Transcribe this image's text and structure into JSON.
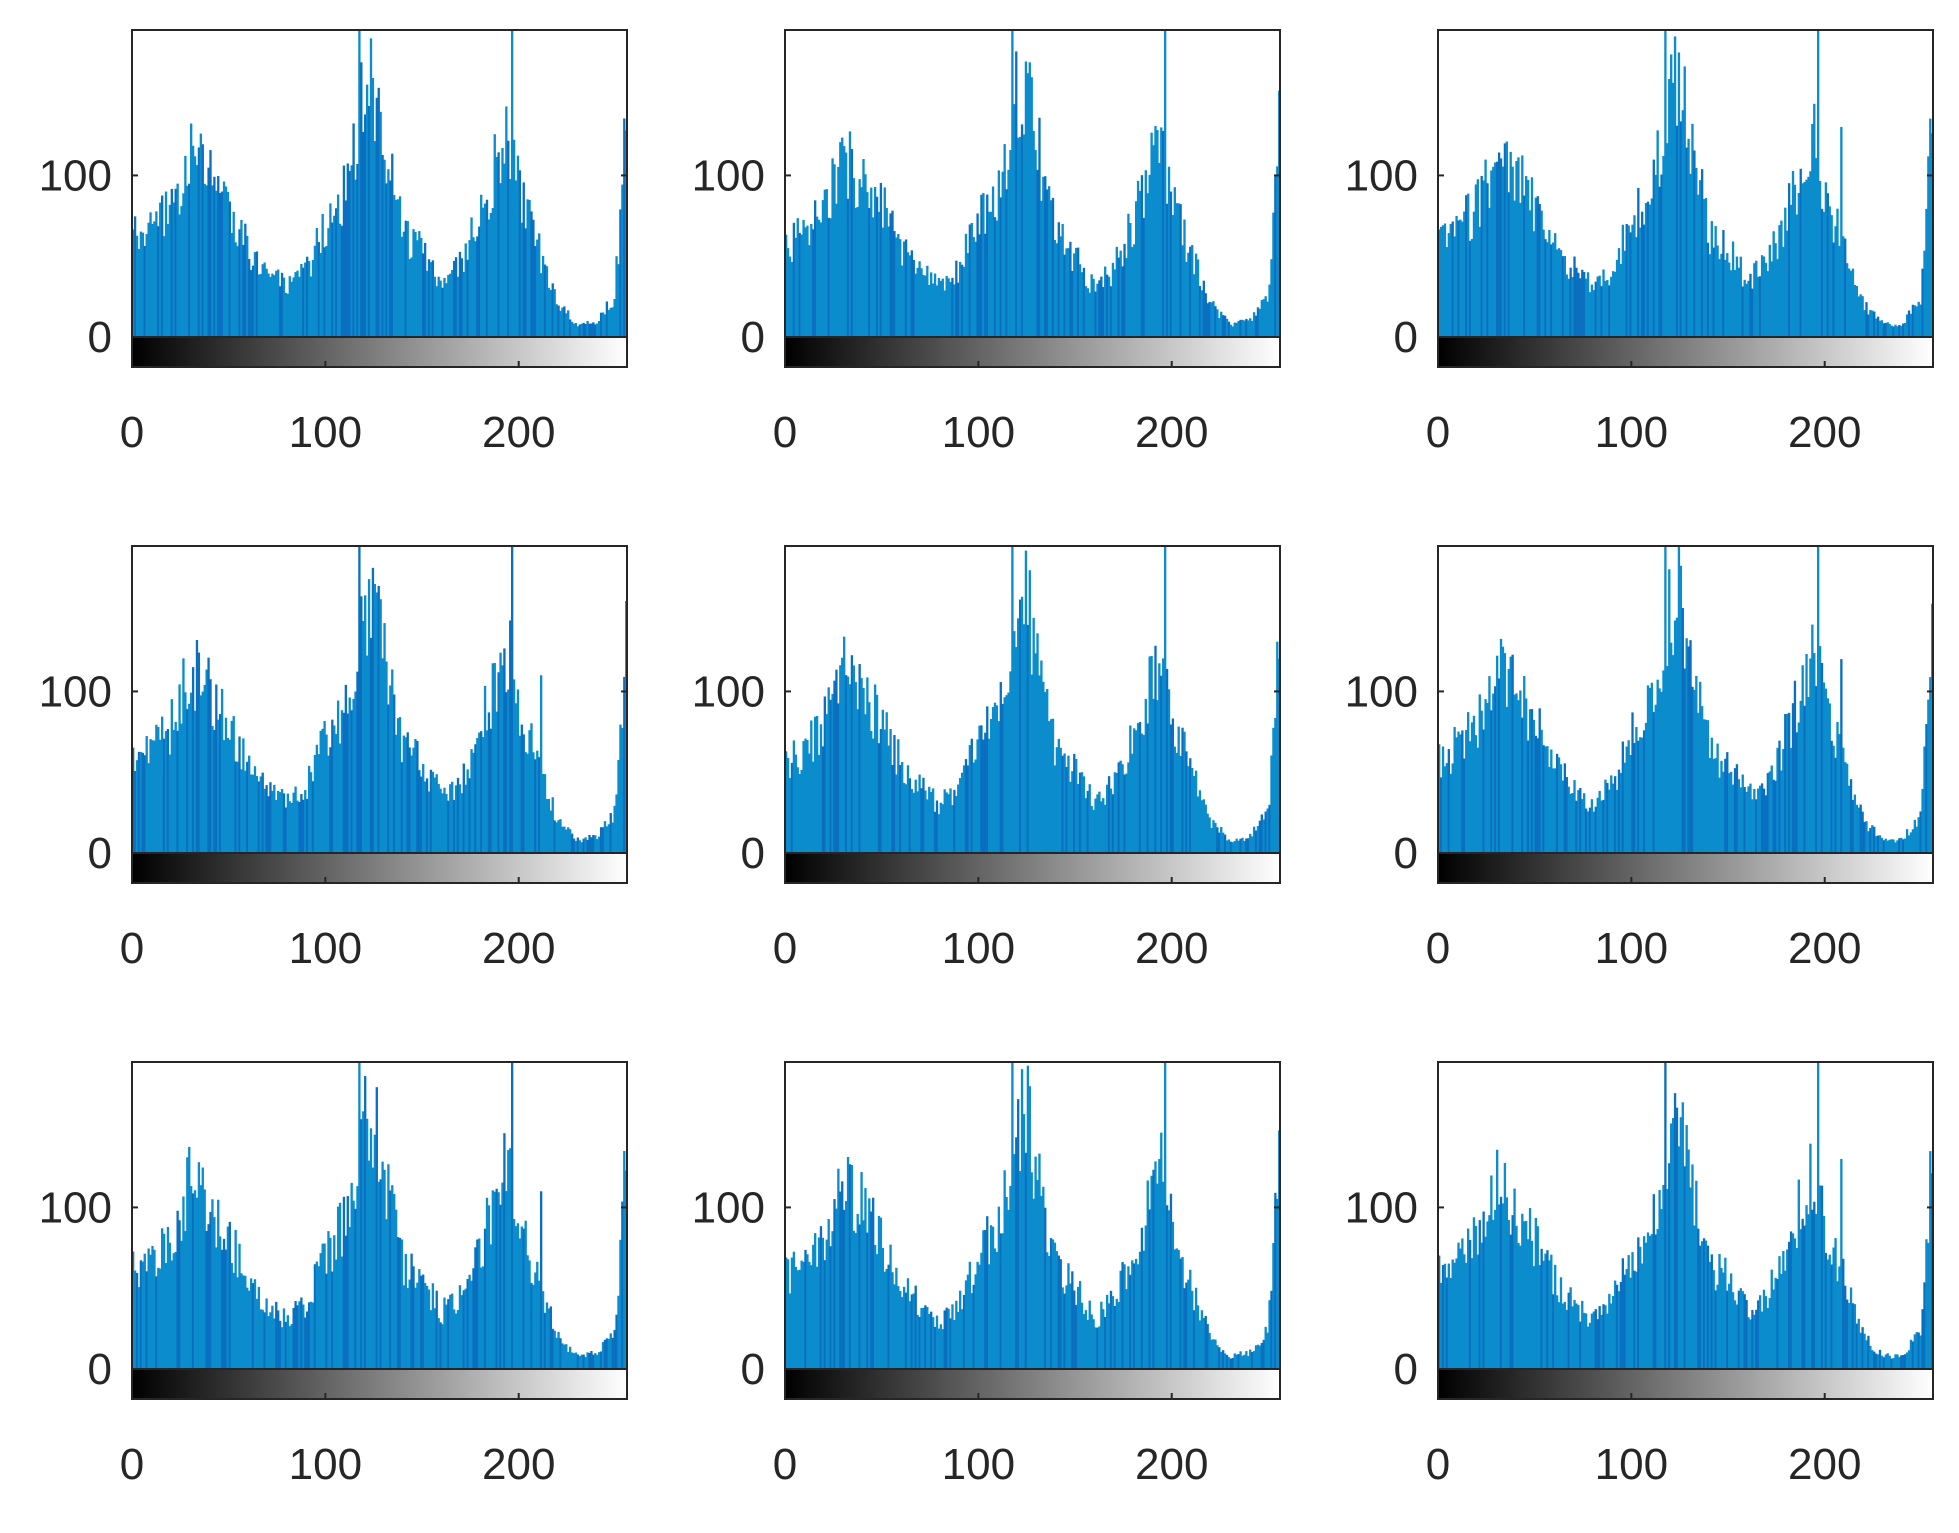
{
  "colors": {
    "bar": "#0a8ccd",
    "bar_dark": "#0b6fc0",
    "axis": "#262626",
    "background": "#ffffff"
  },
  "chart_data": [
    {
      "type": "bar",
      "panel": 1,
      "xlim": [
        0,
        256
      ],
      "ylim": [
        0,
        190
      ],
      "xticks": [
        "0",
        "100",
        "200"
      ],
      "xtick_values": [
        0,
        100,
        200
      ],
      "yticks": [
        "0",
        "100"
      ],
      "ytick_values": [
        0,
        100
      ],
      "colorbar": "grayscale",
      "bins": 256,
      "shape_keypoints": [
        [
          0,
          62
        ],
        [
          10,
          65
        ],
        [
          20,
          80
        ],
        [
          30,
          112
        ],
        [
          40,
          100
        ],
        [
          50,
          80
        ],
        [
          60,
          55
        ],
        [
          70,
          42
        ],
        [
          80,
          30
        ],
        [
          90,
          40
        ],
        [
          100,
          70
        ],
        [
          110,
          90
        ],
        [
          117,
          120
        ],
        [
          120,
          150
        ],
        [
          125,
          155
        ],
        [
          130,
          120
        ],
        [
          140,
          65
        ],
        [
          150,
          55
        ],
        [
          160,
          35
        ],
        [
          170,
          45
        ],
        [
          180,
          75
        ],
        [
          190,
          115
        ],
        [
          195,
          125
        ],
        [
          200,
          90
        ],
        [
          210,
          55
        ],
        [
          220,
          22
        ],
        [
          230,
          8
        ],
        [
          240,
          10
        ],
        [
          250,
          25
        ],
        [
          256,
          150
        ]
      ],
      "spikes": [
        [
          117,
          190
        ],
        [
          118,
          170
        ],
        [
          196,
          190
        ],
        [
          250,
          50
        ]
      ]
    },
    {
      "type": "bar",
      "panel": 2,
      "xlim": [
        0,
        256
      ],
      "ylim": [
        0,
        190
      ],
      "xticks": [
        "0",
        "100",
        "200"
      ],
      "xtick_values": [
        0,
        100,
        200
      ],
      "yticks": [
        "0",
        "100"
      ],
      "ytick_values": [
        0,
        100
      ],
      "colorbar": "grayscale",
      "bins": 256,
      "shape_keypoints": [
        [
          0,
          58
        ],
        [
          10,
          62
        ],
        [
          20,
          78
        ],
        [
          30,
          110
        ],
        [
          40,
          98
        ],
        [
          50,
          80
        ],
        [
          60,
          55
        ],
        [
          70,
          40
        ],
        [
          80,
          30
        ],
        [
          90,
          42
        ],
        [
          100,
          72
        ],
        [
          110,
          88
        ],
        [
          117,
          130
        ],
        [
          120,
          150
        ],
        [
          125,
          160
        ],
        [
          130,
          120
        ],
        [
          140,
          65
        ],
        [
          150,
          50
        ],
        [
          160,
          30
        ],
        [
          170,
          42
        ],
        [
          180,
          70
        ],
        [
          190,
          112
        ],
        [
          195,
          122
        ],
        [
          200,
          85
        ],
        [
          210,
          50
        ],
        [
          220,
          20
        ],
        [
          230,
          8
        ],
        [
          240,
          10
        ],
        [
          250,
          25
        ],
        [
          256,
          145
        ]
      ],
      "spikes": [
        [
          117,
          190
        ],
        [
          126,
          170
        ],
        [
          196,
          190
        ],
        [
          256,
          170
        ]
      ]
    },
    {
      "type": "bar",
      "panel": 3,
      "xlim": [
        0,
        256
      ],
      "ylim": [
        0,
        190
      ],
      "xticks": [
        "0",
        "100",
        "200"
      ],
      "xtick_values": [
        0,
        100,
        200
      ],
      "yticks": [
        "0",
        "100"
      ],
      "ytick_values": [
        0,
        100
      ],
      "colorbar": "grayscale",
      "bins": 256,
      "shape_keypoints": [
        [
          0,
          60
        ],
        [
          10,
          65
        ],
        [
          20,
          82
        ],
        [
          30,
          112
        ],
        [
          40,
          100
        ],
        [
          50,
          80
        ],
        [
          60,
          55
        ],
        [
          70,
          42
        ],
        [
          80,
          30
        ],
        [
          90,
          42
        ],
        [
          100,
          72
        ],
        [
          110,
          92
        ],
        [
          117,
          125
        ],
        [
          120,
          150
        ],
        [
          125,
          160
        ],
        [
          130,
          125
        ],
        [
          140,
          65
        ],
        [
          150,
          55
        ],
        [
          160,
          35
        ],
        [
          170,
          45
        ],
        [
          180,
          72
        ],
        [
          190,
          115
        ],
        [
          195,
          125
        ],
        [
          200,
          90
        ],
        [
          210,
          55
        ],
        [
          220,
          20
        ],
        [
          230,
          8
        ],
        [
          240,
          8
        ],
        [
          250,
          25
        ],
        [
          256,
          150
        ]
      ],
      "spikes": [
        [
          117,
          190
        ],
        [
          196,
          190
        ],
        [
          208,
          130
        ],
        [
          256,
          170
        ]
      ]
    },
    {
      "type": "bar",
      "panel": 4,
      "xlim": [
        0,
        256
      ],
      "ylim": [
        0,
        190
      ],
      "xticks": [
        "0",
        "100",
        "200"
      ],
      "xtick_values": [
        0,
        100,
        200
      ],
      "yticks": [
        "0",
        "100"
      ],
      "ytick_values": [
        0,
        100
      ],
      "colorbar": "grayscale",
      "bins": 256,
      "shape_keypoints": [
        [
          0,
          58
        ],
        [
          10,
          62
        ],
        [
          20,
          78
        ],
        [
          30,
          115
        ],
        [
          40,
          102
        ],
        [
          50,
          80
        ],
        [
          60,
          55
        ],
        [
          70,
          40
        ],
        [
          80,
          30
        ],
        [
          90,
          40
        ],
        [
          100,
          70
        ],
        [
          110,
          90
        ],
        [
          117,
          125
        ],
        [
          120,
          150
        ],
        [
          125,
          155
        ],
        [
          130,
          120
        ],
        [
          140,
          65
        ],
        [
          150,
          55
        ],
        [
          160,
          35
        ],
        [
          170,
          45
        ],
        [
          180,
          75
        ],
        [
          190,
          115
        ],
        [
          195,
          125
        ],
        [
          200,
          90
        ],
        [
          210,
          55
        ],
        [
          220,
          20
        ],
        [
          230,
          8
        ],
        [
          240,
          10
        ],
        [
          250,
          25
        ],
        [
          256,
          150
        ]
      ],
      "spikes": [
        [
          117,
          190
        ],
        [
          196,
          190
        ],
        [
          211,
          110
        ],
        [
          256,
          170
        ]
      ]
    },
    {
      "type": "bar",
      "panel": 5,
      "xlim": [
        0,
        256
      ],
      "ylim": [
        0,
        190
      ],
      "xticks": [
        "0",
        "100",
        "200"
      ],
      "xtick_values": [
        0,
        100,
        200
      ],
      "yticks": [
        "0",
        "100"
      ],
      "ytick_values": [
        0,
        100
      ],
      "colorbar": "grayscale",
      "bins": 256,
      "shape_keypoints": [
        [
          0,
          55
        ],
        [
          10,
          62
        ],
        [
          20,
          78
        ],
        [
          30,
          112
        ],
        [
          40,
          100
        ],
        [
          50,
          80
        ],
        [
          60,
          55
        ],
        [
          70,
          40
        ],
        [
          80,
          30
        ],
        [
          90,
          40
        ],
        [
          100,
          70
        ],
        [
          110,
          88
        ],
        [
          117,
          125
        ],
        [
          120,
          150
        ],
        [
          125,
          160
        ],
        [
          130,
          120
        ],
        [
          140,
          65
        ],
        [
          150,
          50
        ],
        [
          160,
          30
        ],
        [
          170,
          42
        ],
        [
          180,
          70
        ],
        [
          190,
          110
        ],
        [
          195,
          122
        ],
        [
          200,
          85
        ],
        [
          210,
          50
        ],
        [
          220,
          20
        ],
        [
          230,
          8
        ],
        [
          240,
          10
        ],
        [
          250,
          25
        ],
        [
          256,
          145
        ]
      ],
      "spikes": [
        [
          117,
          190
        ],
        [
          126,
          175
        ],
        [
          196,
          190
        ],
        [
          256,
          170
        ]
      ]
    },
    {
      "type": "bar",
      "panel": 6,
      "xlim": [
        0,
        256
      ],
      "ylim": [
        0,
        190
      ],
      "xticks": [
        "0",
        "100",
        "200"
      ],
      "xtick_values": [
        0,
        100,
        200
      ],
      "yticks": [
        "0",
        "100"
      ],
      "ytick_values": [
        0,
        100
      ],
      "colorbar": "grayscale",
      "bins": 256,
      "shape_keypoints": [
        [
          0,
          58
        ],
        [
          10,
          65
        ],
        [
          20,
          80
        ],
        [
          30,
          112
        ],
        [
          40,
          100
        ],
        [
          50,
          80
        ],
        [
          60,
          55
        ],
        [
          70,
          40
        ],
        [
          80,
          30
        ],
        [
          90,
          42
        ],
        [
          100,
          72
        ],
        [
          110,
          92
        ],
        [
          117,
          125
        ],
        [
          120,
          150
        ],
        [
          125,
          158
        ],
        [
          130,
          122
        ],
        [
          140,
          65
        ],
        [
          150,
          55
        ],
        [
          160,
          35
        ],
        [
          170,
          45
        ],
        [
          180,
          72
        ],
        [
          190,
          112
        ],
        [
          195,
          125
        ],
        [
          200,
          88
        ],
        [
          210,
          55
        ],
        [
          220,
          20
        ],
        [
          230,
          8
        ],
        [
          240,
          8
        ],
        [
          250,
          25
        ],
        [
          256,
          150
        ]
      ],
      "spikes": [
        [
          117,
          190
        ],
        [
          196,
          190
        ],
        [
          208,
          120
        ],
        [
          256,
          170
        ]
      ]
    },
    {
      "type": "bar",
      "panel": 7,
      "xlim": [
        0,
        256
      ],
      "ylim": [
        0,
        190
      ],
      "xticks": [
        "0",
        "100",
        "200"
      ],
      "xtick_values": [
        0,
        100,
        200
      ],
      "yticks": [
        "0",
        "100"
      ],
      "ytick_values": [
        0,
        100
      ],
      "colorbar": "grayscale",
      "bins": 256,
      "shape_keypoints": [
        [
          0,
          62
        ],
        [
          10,
          65
        ],
        [
          20,
          80
        ],
        [
          30,
          115
        ],
        [
          40,
          102
        ],
        [
          50,
          80
        ],
        [
          60,
          55
        ],
        [
          70,
          40
        ],
        [
          80,
          30
        ],
        [
          90,
          40
        ],
        [
          100,
          70
        ],
        [
          110,
          90
        ],
        [
          117,
          125
        ],
        [
          120,
          150
        ],
        [
          125,
          155
        ],
        [
          130,
          120
        ],
        [
          140,
          65
        ],
        [
          150,
          55
        ],
        [
          160,
          35
        ],
        [
          170,
          45
        ],
        [
          180,
          75
        ],
        [
          190,
          115
        ],
        [
          195,
          125
        ],
        [
          200,
          90
        ],
        [
          210,
          55
        ],
        [
          220,
          20
        ],
        [
          230,
          8
        ],
        [
          240,
          10
        ],
        [
          250,
          25
        ],
        [
          256,
          150
        ]
      ],
      "spikes": [
        [
          117,
          190
        ],
        [
          196,
          190
        ],
        [
          211,
          110
        ],
        [
          256,
          170
        ]
      ]
    },
    {
      "type": "bar",
      "panel": 8,
      "xlim": [
        0,
        256
      ],
      "ylim": [
        0,
        190
      ],
      "xticks": [
        "0",
        "100",
        "200"
      ],
      "xtick_values": [
        0,
        100,
        200
      ],
      "yticks": [
        "0",
        "100"
      ],
      "ytick_values": [
        0,
        100
      ],
      "colorbar": "grayscale",
      "bins": 256,
      "shape_keypoints": [
        [
          0,
          58
        ],
        [
          10,
          62
        ],
        [
          20,
          78
        ],
        [
          30,
          112
        ],
        [
          40,
          100
        ],
        [
          50,
          80
        ],
        [
          60,
          55
        ],
        [
          70,
          40
        ],
        [
          80,
          30
        ],
        [
          90,
          40
        ],
        [
          100,
          70
        ],
        [
          110,
          88
        ],
        [
          117,
          125
        ],
        [
          120,
          150
        ],
        [
          125,
          160
        ],
        [
          130,
          120
        ],
        [
          140,
          65
        ],
        [
          150,
          50
        ],
        [
          160,
          30
        ],
        [
          170,
          42
        ],
        [
          180,
          70
        ],
        [
          190,
          110
        ],
        [
          195,
          125
        ],
        [
          200,
          85
        ],
        [
          210,
          50
        ],
        [
          220,
          20
        ],
        [
          230,
          8
        ],
        [
          240,
          10
        ],
        [
          250,
          25
        ],
        [
          256,
          145
        ]
      ],
      "spikes": [
        [
          117,
          190
        ],
        [
          126,
          175
        ],
        [
          196,
          190
        ],
        [
          256,
          170
        ]
      ]
    },
    {
      "type": "bar",
      "panel": 9,
      "xlim": [
        0,
        256
      ],
      "ylim": [
        0,
        190
      ],
      "xticks": [
        "0",
        "100",
        "200"
      ],
      "xtick_values": [
        0,
        100,
        200
      ],
      "yticks": [
        "0",
        "100"
      ],
      "ytick_values": [
        0,
        100
      ],
      "colorbar": "grayscale",
      "bins": 256,
      "shape_keypoints": [
        [
          0,
          58
        ],
        [
          10,
          65
        ],
        [
          20,
          80
        ],
        [
          30,
          112
        ],
        [
          40,
          100
        ],
        [
          50,
          80
        ],
        [
          60,
          55
        ],
        [
          70,
          40
        ],
        [
          80,
          30
        ],
        [
          90,
          42
        ],
        [
          100,
          72
        ],
        [
          110,
          92
        ],
        [
          117,
          125
        ],
        [
          120,
          150
        ],
        [
          125,
          158
        ],
        [
          130,
          122
        ],
        [
          140,
          65
        ],
        [
          150,
          55
        ],
        [
          160,
          35
        ],
        [
          170,
          45
        ],
        [
          180,
          72
        ],
        [
          190,
          112
        ],
        [
          195,
          125
        ],
        [
          200,
          88
        ],
        [
          210,
          55
        ],
        [
          220,
          20
        ],
        [
          230,
          8
        ],
        [
          240,
          8
        ],
        [
          250,
          25
        ],
        [
          256,
          150
        ]
      ],
      "spikes": [
        [
          117,
          190
        ],
        [
          196,
          190
        ],
        [
          208,
          130
        ],
        [
          256,
          170
        ]
      ]
    }
  ]
}
